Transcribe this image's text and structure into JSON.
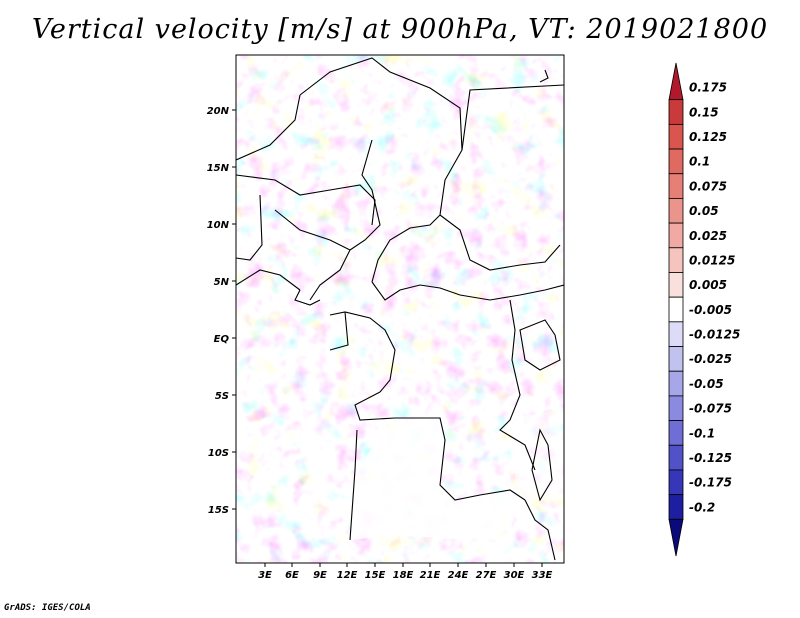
{
  "title": "Vertical velocity [m/s] at 900hPa, VT: 2019021800",
  "footer": "GrADS: IGES/COLA",
  "lat_ticks": [
    "20N",
    "15N",
    "10N",
    "5N",
    "EQ",
    "5S",
    "10S",
    "15S"
  ],
  "lon_ticks": [
    "3E",
    "6E",
    "9E",
    "12E",
    "15E",
    "18E",
    "21E",
    "24E",
    "27E",
    "30E",
    "33E"
  ],
  "colorbar": {
    "labels": [
      "0.175",
      "0.15",
      "0.125",
      "0.1",
      "0.075",
      "0.05",
      "0.025",
      "0.0125",
      "0.005",
      "-0.005",
      "-0.0125",
      "-0.025",
      "-0.05",
      "-0.075",
      "-0.1",
      "-0.125",
      "-0.175",
      "-0.2"
    ],
    "colors": [
      "#b2182b",
      "#cb3a3a",
      "#d9554d",
      "#e06a60",
      "#e67f75",
      "#eb948b",
      "#f0aaa3",
      "#f5c4be",
      "#fae0dc",
      "#ffffff",
      "#dcdcf8",
      "#c2c2f0",
      "#a6a6e8",
      "#8a8ae0",
      "#6e6ed6",
      "#5252c8",
      "#3636b8",
      "#1e1ea0",
      "#0a0a7a"
    ]
  }
}
